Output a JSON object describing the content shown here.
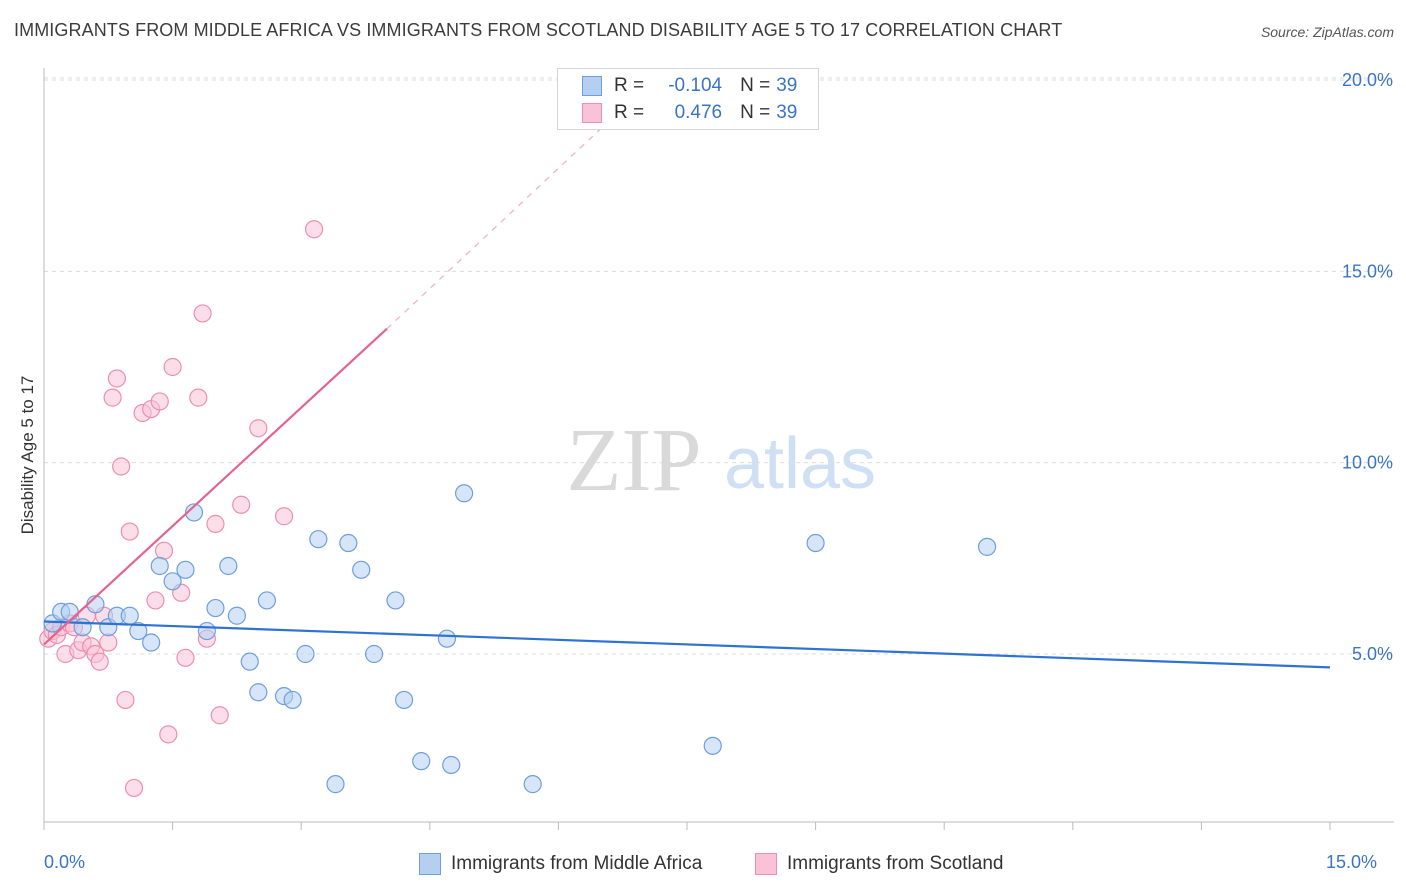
{
  "title": "IMMIGRANTS FROM MIDDLE AFRICA VS IMMIGRANTS FROM SCOTLAND DISABILITY AGE 5 TO 17 CORRELATION CHART",
  "source": "Source: ZipAtlas.com",
  "watermark": {
    "zip": "ZIP",
    "atlas": "atlas"
  },
  "legend": {
    "rows": [
      {
        "r_label": "R =",
        "r_value": "-0.104",
        "n_label": "N =",
        "n_value": "39"
      },
      {
        "r_label": "R =",
        "r_value": "0.476",
        "n_label": "N =",
        "n_value": "39"
      }
    ]
  },
  "x_axis": {
    "min_label": "0.0%",
    "max_label": "15.0%"
  },
  "colors": {
    "blue_fill": "#b5cff0",
    "blue_stroke": "#6e9fdc",
    "blue_line": "#2e72d2",
    "pink_fill": "#f9c3d5",
    "pink_stroke": "#ec8fb0",
    "pink_line": "#e5638f",
    "tick_text": "#3a74c6",
    "grid": "#dcdcdc"
  },
  "chart_data": {
    "type": "scatter",
    "title": "IMMIGRANTS FROM MIDDLE AFRICA VS IMMIGRANTS FROM SCOTLAND DISABILITY AGE 5 TO 17 CORRELATION CHART",
    "xlabel": "",
    "ylabel": "Disability Age 5 to 17",
    "xlim": [
      0,
      15
    ],
    "ylim": [
      0.5,
      20.5
    ],
    "x_ticks": [
      "0.0%",
      "15.0%"
    ],
    "y_ticks": [
      {
        "value": 5,
        "label": "5.0%"
      },
      {
        "value": 10,
        "label": "10.0%"
      },
      {
        "value": 15,
        "label": "15.0%"
      },
      {
        "value": 20,
        "label": "20.0%"
      }
    ],
    "grid": "horizontal dashed",
    "legend_position": "bottom-center",
    "series": [
      {
        "name": "Immigrants from Middle Africa",
        "color": "#b5cff0",
        "points": [
          [
            0.1,
            5.8
          ],
          [
            0.2,
            6.1
          ],
          [
            0.3,
            6.1
          ],
          [
            0.45,
            5.7
          ],
          [
            0.6,
            6.3
          ],
          [
            0.75,
            5.7
          ],
          [
            0.85,
            6.0
          ],
          [
            1.0,
            6.0
          ],
          [
            1.1,
            5.6
          ],
          [
            1.25,
            5.3
          ],
          [
            1.35,
            7.3
          ],
          [
            1.5,
            6.9
          ],
          [
            1.65,
            7.2
          ],
          [
            1.75,
            8.7
          ],
          [
            1.9,
            5.6
          ],
          [
            2.0,
            6.2
          ],
          [
            2.15,
            7.3
          ],
          [
            2.25,
            6.0
          ],
          [
            2.4,
            4.8
          ],
          [
            2.5,
            4.0
          ],
          [
            2.6,
            6.4
          ],
          [
            2.8,
            3.9
          ],
          [
            2.9,
            3.8
          ],
          [
            3.05,
            5.0
          ],
          [
            3.2,
            8.0
          ],
          [
            3.4,
            1.6
          ],
          [
            3.55,
            7.9
          ],
          [
            3.7,
            7.2
          ],
          [
            3.85,
            5.0
          ],
          [
            4.1,
            6.4
          ],
          [
            4.2,
            3.8
          ],
          [
            4.4,
            2.2
          ],
          [
            4.7,
            5.4
          ],
          [
            4.75,
            2.1
          ],
          [
            4.9,
            9.2
          ],
          [
            5.7,
            1.6
          ],
          [
            7.8,
            2.6
          ],
          [
            9.0,
            7.9
          ],
          [
            11.0,
            7.8
          ]
        ]
      },
      {
        "name": "Immigrants from Scotland",
        "color": "#f9c3d5",
        "points": [
          [
            0.05,
            5.4
          ],
          [
            0.1,
            5.6
          ],
          [
            0.15,
            5.5
          ],
          [
            0.2,
            5.7
          ],
          [
            0.25,
            5.0
          ],
          [
            0.3,
            5.8
          ],
          [
            0.35,
            5.7
          ],
          [
            0.4,
            5.1
          ],
          [
            0.45,
            5.3
          ],
          [
            0.5,
            6.0
          ],
          [
            0.55,
            5.2
          ],
          [
            0.6,
            5.0
          ],
          [
            0.65,
            4.8
          ],
          [
            0.7,
            6.0
          ],
          [
            0.75,
            5.3
          ],
          [
            0.8,
            11.7
          ],
          [
            0.85,
            12.2
          ],
          [
            0.9,
            9.9
          ],
          [
            0.95,
            3.8
          ],
          [
            1.0,
            8.2
          ],
          [
            1.05,
            1.5
          ],
          [
            1.15,
            11.3
          ],
          [
            1.25,
            11.4
          ],
          [
            1.3,
            6.4
          ],
          [
            1.35,
            11.6
          ],
          [
            1.4,
            7.7
          ],
          [
            1.45,
            2.9
          ],
          [
            1.5,
            12.5
          ],
          [
            1.6,
            6.6
          ],
          [
            1.65,
            4.9
          ],
          [
            1.8,
            11.7
          ],
          [
            1.85,
            13.9
          ],
          [
            1.9,
            5.4
          ],
          [
            2.0,
            8.4
          ],
          [
            2.05,
            3.4
          ],
          [
            2.3,
            8.9
          ],
          [
            2.5,
            10.9
          ],
          [
            2.8,
            8.6
          ],
          [
            3.15,
            16.1
          ]
        ]
      }
    ],
    "trendlines": [
      {
        "series": "Immigrants from Middle Africa",
        "x": [
          0,
          15
        ],
        "y": [
          5.85,
          4.65
        ],
        "style": "solid"
      },
      {
        "series": "Immigrants from Scotland",
        "x": [
          0,
          4.0
        ],
        "y": [
          5.25,
          13.5
        ],
        "style": "solid",
        "extended_to": [
          6.6,
          18.95
        ],
        "extension_style": "dashed"
      }
    ]
  }
}
